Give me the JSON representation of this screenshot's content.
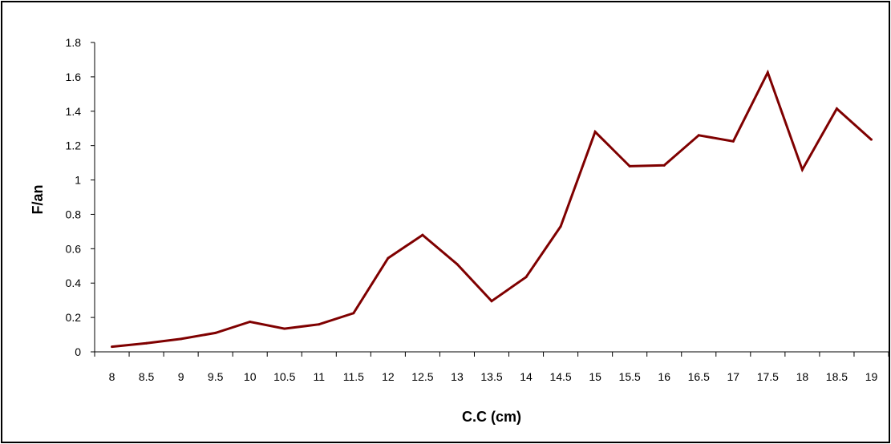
{
  "chart_data": {
    "type": "line",
    "title": "",
    "xlabel": "C.C (cm)",
    "ylabel": "F/an",
    "categories": [
      "8",
      "8.5",
      "9",
      "9.5",
      "10",
      "10.5",
      "11",
      "11.5",
      "12",
      "12.5",
      "13",
      "13.5",
      "14",
      "14.5",
      "15",
      "15.5",
      "16",
      "16.5",
      "17",
      "17.5",
      "18",
      "18.5",
      "19"
    ],
    "series": [
      {
        "values": [
          0.03,
          0.05,
          0.075,
          0.11,
          0.175,
          0.135,
          0.16,
          0.225,
          0.545,
          0.68,
          0.51,
          0.295,
          0.435,
          0.73,
          1.28,
          1.08,
          1.085,
          1.26,
          1.225,
          1.625,
          1.06,
          1.415,
          1.235
        ]
      }
    ],
    "ylim": [
      0,
      1.8
    ],
    "yticks": [
      "0",
      "0.2",
      "0.4",
      "0.6",
      "0.8",
      "1",
      "1.2",
      "1.4",
      "1.6",
      "1.8"
    ],
    "line_color": "#7f0000",
    "grid": false,
    "legend": "none"
  }
}
